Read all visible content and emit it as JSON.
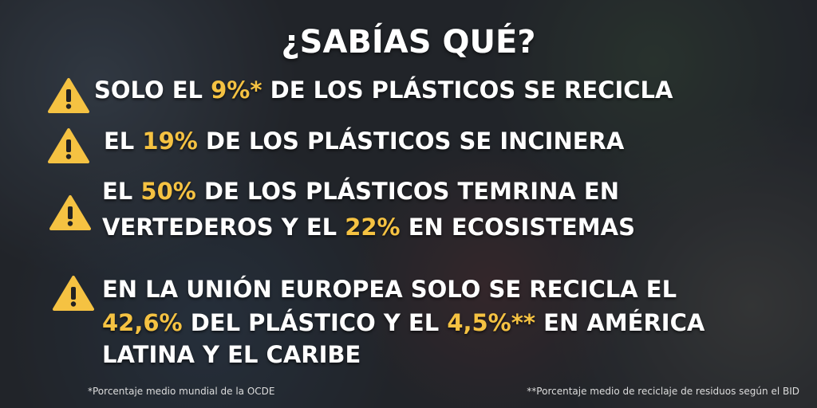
{
  "title": "¿SABÍAS QUÉ?",
  "items": [
    {
      "lines": [
        [
          {
            "text": "SOLO EL "
          },
          {
            "text": "9%*",
            "highlight": true
          },
          {
            "text": " DE LOS PLÁSTICOS SE RECICLA"
          }
        ]
      ]
    },
    {
      "lines": [
        [
          {
            "text": "EL "
          },
          {
            "text": "19%",
            "highlight": true
          },
          {
            "text": " DE LOS PLÁSTICOS SE INCINERA"
          }
        ]
      ]
    },
    {
      "lines": [
        [
          {
            "text": "EL "
          },
          {
            "text": "50%",
            "highlight": true
          },
          {
            "text": " DE LOS PLÁSTICOS TEMRINA EN"
          }
        ],
        [
          {
            "text": "VERTEDEROS Y EL "
          },
          {
            "text": "22%",
            "highlight": true
          },
          {
            "text": " EN ECOSISTEMAS"
          }
        ]
      ]
    },
    {
      "lines": [
        [
          {
            "text": "EN LA UNIÓN EUROPEA SOLO SE RECICLA EL"
          }
        ],
        [
          {
            "text": "42,6%",
            "highlight": true
          },
          {
            "text": " DEL PLÁSTICO Y EL "
          },
          {
            "text": "4,5%**",
            "highlight": true
          },
          {
            "text": " EN AMÉRICA"
          }
        ],
        [
          {
            "text": "LATINA Y EL CARIBE"
          }
        ]
      ]
    }
  ],
  "footnotes": [
    "*Porcentaje medio mundial de la OCDE",
    "**Porcentaje medio de reciclaje de residuos según el BID"
  ]
}
